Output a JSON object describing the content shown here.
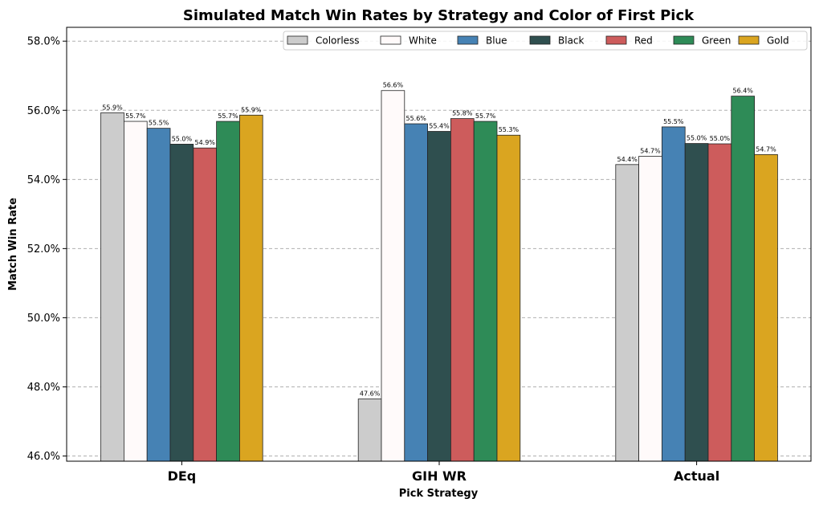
{
  "chart_data": {
    "type": "bar",
    "title": "Simulated Match Win Rates by Strategy and Color of First Pick",
    "xlabel": "Pick Strategy",
    "ylabel": "Match Win Rate",
    "categories": [
      "DEq",
      "GIH WR",
      "Actual"
    ],
    "ylim": [
      45.85,
      58.4
    ],
    "yticks": [
      46,
      48,
      50,
      52,
      54,
      56,
      58
    ],
    "ytick_labels": [
      "46.0%",
      "48.0%",
      "50.0%",
      "52.0%",
      "54.0%",
      "56.0%",
      "58.0%"
    ],
    "grid": "y-dashed",
    "legend_position": "top-right",
    "series": [
      {
        "name": "Colorless",
        "color": "#cccccc",
        "values": [
          55.93,
          47.65,
          54.43
        ],
        "labels": [
          "55.9%",
          "47.6%",
          "54.4%"
        ]
      },
      {
        "name": "White",
        "color": "#fffafa",
        "values": [
          55.68,
          56.57,
          54.67
        ],
        "labels": [
          "55.7%",
          "56.6%",
          "54.7%"
        ]
      },
      {
        "name": "Blue",
        "color": "#4682b4",
        "values": [
          55.48,
          55.61,
          55.52
        ],
        "labels": [
          "55.5%",
          "55.6%",
          "55.5%"
        ]
      },
      {
        "name": "Black",
        "color": "#2f4f4f",
        "values": [
          55.02,
          55.39,
          55.04
        ],
        "labels": [
          "55.0%",
          "55.4%",
          "55.0%"
        ]
      },
      {
        "name": "Red",
        "color": "#cd5c5c",
        "values": [
          54.91,
          55.76,
          55.03
        ],
        "labels": [
          "54.9%",
          "55.8%",
          "55.0%"
        ]
      },
      {
        "name": "Green",
        "color": "#2e8b57",
        "values": [
          55.68,
          55.68,
          56.41
        ],
        "labels": [
          "55.7%",
          "55.7%",
          "56.4%"
        ]
      },
      {
        "name": "Gold",
        "color": "#daa520",
        "values": [
          55.86,
          55.28,
          54.72
        ],
        "labels": [
          "55.9%",
          "55.3%",
          "54.7%"
        ]
      }
    ]
  }
}
